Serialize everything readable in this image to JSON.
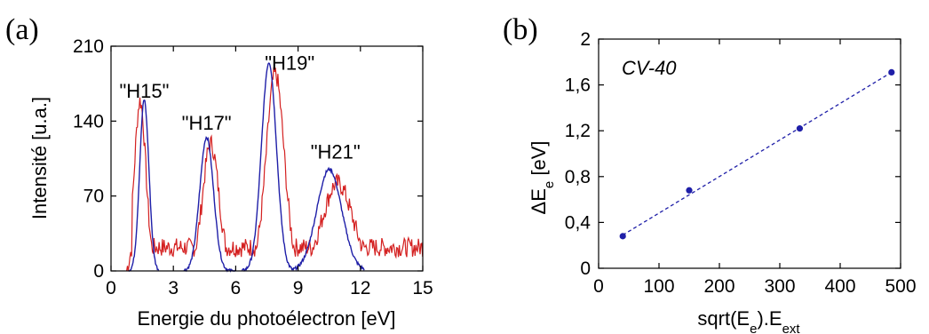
{
  "chart_data": [
    {
      "panel_label": "(a)",
      "type": "line",
      "xlabel": "Energie du photoélectron [eV]",
      "ylabel": "Intensité [u.a.]",
      "xlim": [
        0,
        15
      ],
      "ylim": [
        0,
        210
      ],
      "xticks": [
        0,
        3,
        6,
        9,
        12,
        15
      ],
      "yticks": [
        0,
        70,
        140,
        210
      ],
      "grid": false,
      "annotations": [
        {
          "text": "\"H15\"",
          "x": 1.6,
          "y": 162
        },
        {
          "text": "\"H17\"",
          "x": 4.6,
          "y": 132
        },
        {
          "text": "\"H19\"",
          "x": 8.6,
          "y": 188
        },
        {
          "text": "\"H21\"",
          "x": 10.8,
          "y": 105
        }
      ],
      "series": [
        {
          "color": "#d42020",
          "peaks": [
            {
              "center": 1.4,
              "height": 155,
              "width": 0.27
            },
            {
              "center": 4.8,
              "height": 115,
              "width": 0.38
            },
            {
              "center": 7.9,
              "height": 180,
              "width": 0.42
            },
            {
              "center": 10.9,
              "height": 78,
              "width": 0.7
            }
          ],
          "baseline": 22,
          "noise": 9
        },
        {
          "color": "#1f1fa8",
          "peaks": [
            {
              "center": 1.6,
              "height": 160,
              "width": 0.22
            },
            {
              "center": 4.6,
              "height": 125,
              "width": 0.33
            },
            {
              "center": 7.6,
              "height": 195,
              "width": 0.36
            },
            {
              "center": 10.5,
              "height": 95,
              "width": 0.6
            }
          ],
          "segments": [
            [
              0.85,
              2.3
            ],
            [
              3.5,
              6.0
            ],
            [
              6.3,
              8.8
            ],
            [
              8.7,
              12.2
            ]
          ]
        }
      ]
    },
    {
      "panel_label": "(b)",
      "type": "scatter",
      "xlabel": "sqrt(E_e).E_ext",
      "ylabel": "ΔE_e [eV]",
      "xlim": [
        0,
        500
      ],
      "ylim": [
        0,
        2
      ],
      "xticks": [
        0,
        100,
        200,
        300,
        400,
        500
      ],
      "yticks": [
        0,
        0.4,
        0.8,
        1.2,
        1.6,
        2
      ],
      "ytick_labels": [
        "0",
        "0,4",
        "0,8",
        "1,2",
        "1,6",
        "2"
      ],
      "grid": false,
      "annotation": "CV-40",
      "point_color": "#1f1fa8",
      "x": [
        40,
        150,
        333,
        485
      ],
      "y": [
        0.28,
        0.68,
        1.22,
        1.71
      ],
      "fit_line": {
        "x": [
          40,
          485
        ],
        "y": [
          0.29,
          1.71
        ]
      }
    }
  ]
}
